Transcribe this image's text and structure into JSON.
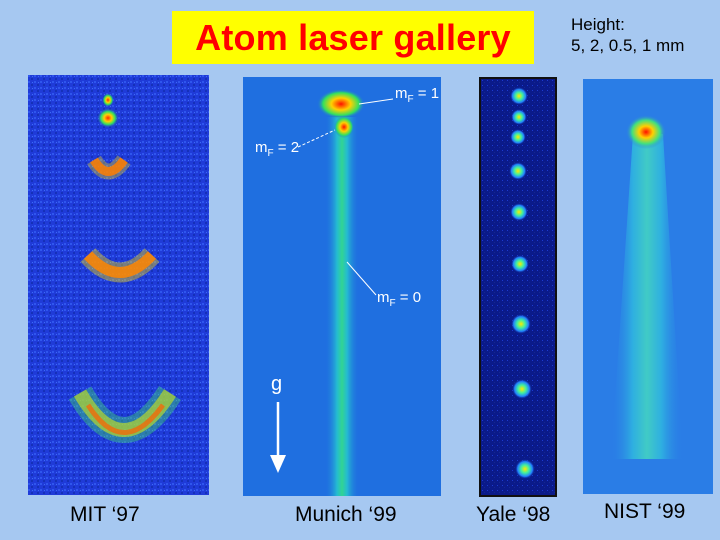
{
  "slide": {
    "title": "Atom laser gallery",
    "height_label": "Height:",
    "height_values": "5, 2, 0.5, 1 mm"
  },
  "panels": {
    "mit": {
      "caption": "MIT ‘97"
    },
    "munich": {
      "caption": "Munich ‘99",
      "label_mf1": "m",
      "label_mf1_sub": "F",
      "label_mf1_val": " = 1",
      "label_mf2": "m",
      "label_mf2_sub": "F",
      "label_mf2_val": " = 2",
      "label_mf0": "m",
      "label_mf0_sub": "F",
      "label_mf0_val": " = 0",
      "gravity_label": "g"
    },
    "yale": {
      "caption": "Yale ‘98"
    },
    "nist": {
      "caption": "NIST ‘99"
    }
  },
  "colors": {
    "background": "#a6c8f1",
    "title_box": "#ffff00",
    "title_text": "#ff0000",
    "mit_bg": "#1f3bd8",
    "munich_bg": "#1f6fe0",
    "yale_bg": "#0a1a8a",
    "nist_bg": "#2a7de6"
  }
}
